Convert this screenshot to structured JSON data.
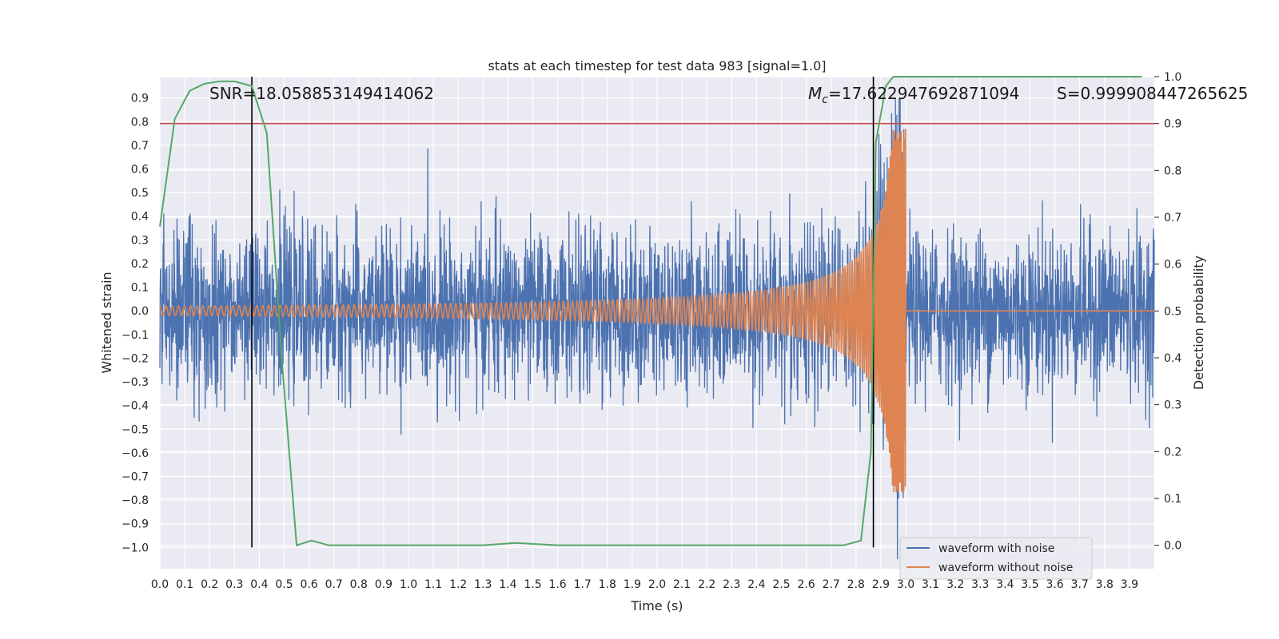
{
  "chart_data": {
    "type": "line",
    "title": "stats at each timestep for test data 983 [signal=1.0]",
    "xlabel": "Time (s)",
    "ylabel_left": "Whitened strain",
    "ylabel_right": "Detection probability",
    "xlim": [
      0.0,
      4.0
    ],
    "ylim_left": [
      -1.09,
      0.99
    ],
    "ylim_right": [
      -0.05,
      1.0
    ],
    "x_ticks": [
      "0.0",
      "0.1",
      "0.2",
      "0.3",
      "0.4",
      "0.5",
      "0.6",
      "0.7",
      "0.8",
      "0.9",
      "1.0",
      "1.1",
      "1.2",
      "1.3",
      "1.4",
      "1.5",
      "1.6",
      "1.7",
      "1.8",
      "1.9",
      "2.0",
      "2.1",
      "2.2",
      "2.3",
      "2.4",
      "2.5",
      "2.6",
      "2.7",
      "2.8",
      "2.9",
      "3.0",
      "3.1",
      "3.2",
      "3.3",
      "3.4",
      "3.5",
      "3.6",
      "3.7",
      "3.8",
      "3.9"
    ],
    "y_ticks_left": [
      "0.9",
      "0.8",
      "0.7",
      "0.6",
      "0.5",
      "0.4",
      "0.3",
      "0.2",
      "0.1",
      "0.0",
      "−0.1",
      "−0.2",
      "−0.3",
      "−0.4",
      "−0.5",
      "−0.6",
      "−0.7",
      "−0.8",
      "−0.9",
      "−1.0"
    ],
    "y_ticks_right": [
      "1.0",
      "0.9",
      "0.8",
      "0.7",
      "0.6",
      "0.5",
      "0.4",
      "0.3",
      "0.2",
      "0.1",
      "0.0"
    ],
    "grid": true,
    "legend_position": "lower-right",
    "annotations": {
      "snr": "SNR=18.058853149414062",
      "mc": "=17.622947692871094",
      "mc_symbol": "M",
      "mc_sub": "c",
      "s": "S=0.999908447265625"
    },
    "threshold": {
      "value": 0.9,
      "axis": "right",
      "color": "#c44e52"
    },
    "vertical_lines": [
      0.37,
      2.87
    ],
    "series": [
      {
        "name": "waveform with noise",
        "color": "#4c72b0",
        "noise_amplitude": 0.3
      },
      {
        "name": "waveform without noise",
        "color": "#dd8452",
        "merger_time": 3.0,
        "start_amplitude": 0.02,
        "peak_amplitude": 0.77
      },
      {
        "color": "#55a868",
        "axis": "right",
        "x": [
          0.0,
          0.06,
          0.12,
          0.18,
          0.24,
          0.3,
          0.37,
          0.43,
          0.49,
          0.55,
          0.61,
          0.68,
          0.8,
          1.0,
          1.3,
          1.43,
          1.6,
          1.8,
          2.0,
          2.2,
          2.4,
          2.6,
          2.75,
          2.82,
          2.86,
          2.88,
          2.92,
          2.95,
          3.0,
          3.2,
          3.5,
          3.8,
          3.95
        ],
        "y": [
          0.68,
          0.91,
          0.97,
          0.985,
          0.99,
          0.99,
          0.98,
          0.88,
          0.4,
          0.0,
          0.01,
          0.0,
          0.0,
          0.0,
          0.0,
          0.005,
          0.0,
          0.0,
          0.0,
          0.0,
          0.0,
          0.0,
          0.0,
          0.01,
          0.2,
          0.86,
          0.98,
          1.0,
          1.0,
          1.0,
          1.0,
          1.0,
          1.0
        ]
      }
    ]
  },
  "colors": {
    "plot_bg": "#eaeaf2",
    "grid": "#ffffff",
    "text": "#262626",
    "vline": "#000000"
  }
}
